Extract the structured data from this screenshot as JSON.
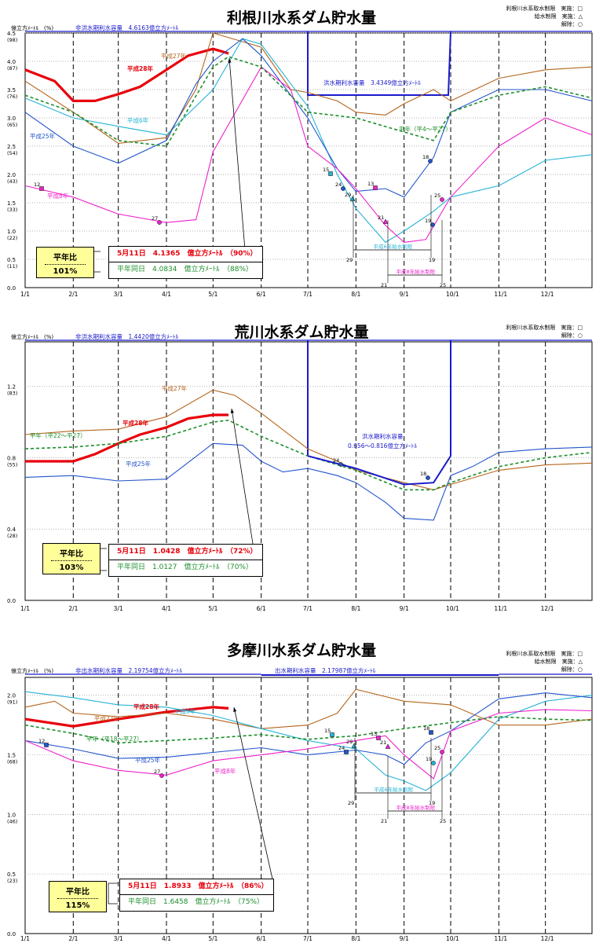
{
  "panels": [
    {
      "title": "利根川水系ダム貯水量",
      "ylabel": "億立方ﾒｰﾄﾙ　(%)",
      "capacity_label": "非洪水期利水容量　4.6163億立方ﾒｰﾄﾙ",
      "flood_label": "洪水期利水容量　3.4349億立方ﾒｰﾄﾙ",
      "notes": [
        "利根川水系取水制限　実施：□",
        "給水制限　実施：△",
        "解除：○"
      ],
      "ratio_label": "平年比",
      "ratio_value": "101%",
      "current_line": "5月11日　4.1365　億立方ﾒｰﾄﾙ　（90%）",
      "normal_line": "平年同日　4.0834　億立方ﾒｰﾄﾙ　（88%）",
      "yticks": [
        "4.5",
        "4.0",
        "3.5",
        "3.0",
        "2.5",
        "2.0",
        "1.5",
        "1.0",
        "0.5",
        "0.0"
      ],
      "ypct": [
        "(98)",
        "(87)",
        "(76)",
        "(65)",
        "(54)",
        "(43)",
        "(33)",
        "(22)",
        "(11)",
        ""
      ],
      "xticks": [
        "1/1",
        "2/1",
        "3/1",
        "4/1",
        "5/1",
        "6/1",
        "7/1",
        "8/1",
        "9/1",
        "10/1",
        "11/1",
        "12/1"
      ],
      "series_labels": [
        {
          "text": "平成28年",
          "color": "#e8000b"
        },
        {
          "text": "平成27年",
          "color": "#b5651d"
        },
        {
          "text": "平成6年",
          "color": "#25b4d6"
        },
        {
          "text": "平成25年",
          "color": "#2255cc"
        },
        {
          "text": "平成8年",
          "color": "#ee22cc"
        },
        {
          "text": "平年（平4～平27）",
          "color": "#1b8f2a"
        }
      ],
      "marker_labels": [
        "12",
        "27",
        "15",
        "24",
        "13",
        "29",
        "21",
        "18",
        "19",
        "25"
      ],
      "bracket_labels": [
        "平成6年給水制限",
        "平成8年給水制限",
        "29",
        "19",
        "21",
        "25"
      ]
    },
    {
      "title": "荒川水系ダム貯水量",
      "ylabel": "億立方ﾒｰﾄﾙ　(%)",
      "capacity_label": "非洪水期利水容量　1.4420億立方ﾒｰﾄﾙ",
      "flood_label": "洪水期利水容量",
      "flood_label2": "0.656～0.816億立方ﾒｰﾄﾙ",
      "notes": [
        "利根川水系取水制限　実施：□",
        "解除：○"
      ],
      "ratio_label": "平年比",
      "ratio_value": "103%",
      "current_line": "5月11日　1.0428　億立方ﾒｰﾄﾙ　（72%）",
      "normal_line": "平年同日　1.0127　億立方ﾒｰﾄﾙ　（70%）",
      "yticks": [
        "1.2",
        "0.8",
        "0.4",
        "0.0"
      ],
      "ypct": [
        "(83)",
        "(55)",
        "(28)",
        ""
      ],
      "xticks": [
        "1/1",
        "2/1",
        "3/1",
        "4/1",
        "5/1",
        "6/1",
        "7/1",
        "8/1",
        "9/1",
        "10/1",
        "11/1",
        "12/1"
      ],
      "series_labels": [
        {
          "text": "平成27年",
          "color": "#b5651d"
        },
        {
          "text": "平成28年",
          "color": "#e8000b"
        },
        {
          "text": "平年（平22～平27）",
          "color": "#1b8f2a"
        },
        {
          "text": "平成25年",
          "color": "#2255cc"
        }
      ],
      "marker_labels": [
        "24",
        "18"
      ]
    },
    {
      "title": "多摩川水系ダム貯水量",
      "ylabel": "億立方ﾒｰﾄﾙ　(%)",
      "capacity_label": "非出水期利水容量　2.19754億立方ﾒｰﾄﾙ",
      "flood_label": "出水期利水容量　2.17987億立方ﾒｰﾄﾙ",
      "notes": [
        "利根川水系取水制限　実施：□",
        "給水制限　実施：△",
        "解除：○"
      ],
      "ratio_label": "平年比",
      "ratio_value": "115%",
      "current_line": "5月11日　1.8933　億立方ﾒｰﾄﾙ　（86%）",
      "normal_line": "平年同日　1.6458　億立方ﾒｰﾄﾙ　（75%）",
      "yticks": [
        "2.0",
        "1.5",
        "1.0",
        "0.5",
        "0.0"
      ],
      "ypct": [
        "(91)",
        "(68)",
        "(46)",
        "(23)",
        ""
      ],
      "xticks": [
        "1/1",
        "2/1",
        "3/1",
        "4/1",
        "5/1",
        "6/1",
        "7/1",
        "8/1",
        "9/1",
        "10/1",
        "11/1",
        "12/1"
      ],
      "series_labels": [
        {
          "text": "平成28年",
          "color": "#e8000b"
        },
        {
          "text": "平成27年",
          "color": "#b5651d"
        },
        {
          "text": "平成6年",
          "color": "#25b4d6"
        },
        {
          "text": "平年（平18～平27）",
          "color": "#1b8f2a"
        },
        {
          "text": "平成25年",
          "color": "#2255cc"
        },
        {
          "text": "平成8年",
          "color": "#ee22cc"
        }
      ],
      "marker_labels": [
        "12",
        "27",
        "15",
        "24",
        "29",
        "13",
        "21",
        "18",
        "19",
        "25"
      ],
      "bracket_labels": [
        "平成6年給水制限",
        "平成8年給水制限",
        "29",
        "19",
        "21",
        "25"
      ]
    }
  ],
  "chart_data": [
    {
      "type": "line",
      "title": "利根川水系ダム貯水量",
      "x_unit": "month/day",
      "ylim": [
        0,
        4.5
      ],
      "xticks": [
        "1/1",
        "2/1",
        "3/1",
        "4/1",
        "5/1",
        "6/1",
        "7/1",
        "8/1",
        "9/1",
        "10/1",
        "11/1",
        "12/1"
      ],
      "series": [
        {
          "name": "平成28年",
          "color": "#e8000b",
          "x": [
            "1/1",
            "1/20",
            "2/1",
            "2/15",
            "3/1",
            "3/15",
            "4/1",
            "4/15",
            "5/1",
            "5/11"
          ],
          "values": [
            3.85,
            3.65,
            3.3,
            3.3,
            3.42,
            3.55,
            3.85,
            4.1,
            4.22,
            4.14
          ]
        },
        {
          "name": "平成27年",
          "color": "#b5651d",
          "x": [
            "1/1",
            "2/1",
            "3/1",
            "4/1",
            "4/20",
            "5/1",
            "6/1",
            "6/20",
            "7/1",
            "7/20",
            "8/1",
            "8/20",
            "9/1",
            "9/20",
            "10/1",
            "11/1",
            "12/1",
            "12/31"
          ],
          "values": [
            3.65,
            3.1,
            2.55,
            2.65,
            3.5,
            4.5,
            4.25,
            3.5,
            3.45,
            3.3,
            3.1,
            3.05,
            3.25,
            3.5,
            3.3,
            3.7,
            3.85,
            3.9
          ]
        },
        {
          "name": "平成6年",
          "color": "#25b4d6",
          "x": [
            "1/1",
            "2/1",
            "3/1",
            "4/1",
            "5/1",
            "5/20",
            "6/1",
            "7/1",
            "7/20",
            "8/1",
            "8/20",
            "9/1",
            "9/20",
            "10/1",
            "11/1",
            "12/1",
            "12/31"
          ],
          "values": [
            3.35,
            3.0,
            2.85,
            2.7,
            3.5,
            4.4,
            4.3,
            3.2,
            2.0,
            1.4,
            0.8,
            1.0,
            1.35,
            1.6,
            1.8,
            2.25,
            2.35
          ]
        },
        {
          "name": "平成25年",
          "color": "#2255cc",
          "x": [
            "1/1",
            "2/1",
            "3/1",
            "4/1",
            "4/20",
            "5/1",
            "5/20",
            "6/1",
            "6/20",
            "7/1",
            "7/20",
            "8/1",
            "8/20",
            "9/1",
            "9/20",
            "10/1",
            "11/1",
            "12/1",
            "12/31"
          ],
          "values": [
            3.1,
            2.5,
            2.2,
            2.6,
            3.6,
            4.0,
            4.4,
            4.1,
            3.4,
            3.0,
            2.1,
            1.7,
            1.75,
            1.6,
            2.3,
            3.1,
            3.5,
            3.5,
            3.3
          ]
        },
        {
          "name": "平成8年",
          "color": "#ee22cc",
          "x": [
            "1/1",
            "2/1",
            "3/1",
            "4/1",
            "4/20",
            "5/1",
            "6/1",
            "6/20",
            "7/1",
            "7/20",
            "8/1",
            "8/20",
            "9/1",
            "9/15",
            "10/1",
            "11/1",
            "12/1",
            "12/31"
          ],
          "values": [
            1.8,
            1.6,
            1.3,
            1.15,
            1.2,
            2.4,
            3.9,
            3.5,
            2.5,
            2.1,
            1.75,
            1.1,
            0.8,
            0.85,
            1.6,
            2.5,
            3.0,
            2.7
          ]
        },
        {
          "name": "平年（平4～平27）",
          "color": "#1b8f2a",
          "dash": true,
          "x": [
            "1/1",
            "2/1",
            "3/1",
            "4/1",
            "5/1",
            "5/11",
            "6/1",
            "7/1",
            "8/1",
            "9/1",
            "9/20",
            "10/1",
            "11/1",
            "12/1",
            "12/31"
          ],
          "values": [
            3.4,
            3.1,
            2.6,
            2.5,
            3.9,
            4.08,
            3.9,
            3.1,
            3.0,
            2.75,
            2.6,
            3.1,
            3.4,
            3.55,
            3.35
          ]
        }
      ]
    },
    {
      "type": "line",
      "title": "荒川水系ダム貯水量",
      "x_unit": "month/day",
      "ylim": [
        0,
        1.45
      ],
      "xticks": [
        "1/1",
        "2/1",
        "3/1",
        "4/1",
        "5/1",
        "6/1",
        "7/1",
        "8/1",
        "9/1",
        "10/1",
        "11/1",
        "12/1"
      ],
      "series": [
        {
          "name": "平成28年",
          "color": "#e8000b",
          "x": [
            "1/1",
            "2/1",
            "2/15",
            "3/1",
            "3/15",
            "4/1",
            "4/15",
            "5/1",
            "5/11"
          ],
          "values": [
            0.78,
            0.78,
            0.82,
            0.88,
            0.93,
            0.97,
            1.02,
            1.04,
            1.04
          ]
        },
        {
          "name": "平成27年",
          "color": "#b5651d",
          "x": [
            "1/1",
            "2/1",
            "3/1",
            "4/1",
            "5/1",
            "5/15",
            "6/1",
            "7/1",
            "7/20",
            "8/1",
            "9/1",
            "9/20",
            "10/1",
            "11/1",
            "12/1",
            "12/31"
          ],
          "values": [
            0.93,
            0.95,
            0.96,
            1.03,
            1.18,
            1.15,
            1.05,
            0.85,
            0.78,
            0.73,
            0.66,
            0.62,
            0.65,
            0.73,
            0.76,
            0.77
          ]
        },
        {
          "name": "平成25年",
          "color": "#2255cc",
          "x": [
            "1/1",
            "2/1",
            "3/1",
            "4/1",
            "5/1",
            "5/20",
            "6/1",
            "6/15",
            "7/1",
            "7/20",
            "8/1",
            "8/20",
            "9/1",
            "9/20",
            "10/1",
            "10/15",
            "11/1",
            "12/1",
            "12/31"
          ],
          "values": [
            0.69,
            0.7,
            0.67,
            0.68,
            0.88,
            0.87,
            0.78,
            0.72,
            0.74,
            0.7,
            0.66,
            0.55,
            0.46,
            0.45,
            0.7,
            0.75,
            0.83,
            0.85,
            0.86
          ]
        },
        {
          "name": "平年（平22～平27）",
          "color": "#1b8f2a",
          "dash": true,
          "x": [
            "1/1",
            "2/1",
            "3/1",
            "4/1",
            "5/1",
            "5/11",
            "6/1",
            "7/1",
            "8/1",
            "9/1",
            "9/20",
            "10/1",
            "11/1",
            "12/1",
            "12/31"
          ],
          "values": [
            0.85,
            0.86,
            0.88,
            0.92,
            1.0,
            1.01,
            0.92,
            0.81,
            0.73,
            0.62,
            0.62,
            0.66,
            0.75,
            0.8,
            0.83
          ]
        },
        {
          "name": "洪水期利水容量",
          "color": "#1a1acc",
          "x": [
            "7/1",
            "8/1",
            "9/1",
            "9/20",
            "10/1"
          ],
          "values": [
            0.81,
            0.74,
            0.65,
            0.66,
            0.81
          ]
        }
      ]
    },
    {
      "type": "line",
      "title": "多摩川水系ダム貯水量",
      "x_unit": "month/day",
      "ylim": [
        0,
        2.15
      ],
      "xticks": [
        "1/1",
        "2/1",
        "3/1",
        "4/1",
        "5/1",
        "6/1",
        "7/1",
        "8/1",
        "9/1",
        "10/1",
        "11/1",
        "12/1"
      ],
      "series": [
        {
          "name": "平成28年",
          "color": "#e8000b",
          "x": [
            "1/1",
            "2/1",
            "3/1",
            "4/1",
            "5/1",
            "5/11"
          ],
          "values": [
            1.8,
            1.74,
            1.8,
            1.86,
            1.9,
            1.89
          ]
        },
        {
          "name": "平成27年",
          "color": "#b5651d",
          "x": [
            "1/1",
            "1/20",
            "2/1",
            "3/1",
            "4/1",
            "5/1",
            "6/1",
            "7/1",
            "7/20",
            "8/1",
            "9/1",
            "10/1",
            "11/1",
            "12/1",
            "12/31"
          ],
          "values": [
            1.9,
            1.95,
            1.85,
            1.82,
            1.85,
            1.8,
            1.72,
            1.75,
            1.85,
            2.05,
            1.95,
            1.92,
            1.75,
            1.75,
            1.8
          ]
        },
        {
          "name": "平成6年",
          "color": "#25b4d6",
          "x": [
            "1/1",
            "2/1",
            "3/1",
            "4/1",
            "5/1",
            "6/1",
            "7/1",
            "8/1",
            "8/20",
            "9/1",
            "9/15",
            "10/1",
            "11/1",
            "12/1",
            "12/31"
          ],
          "values": [
            2.03,
            1.98,
            1.92,
            1.9,
            1.83,
            1.72,
            1.62,
            1.55,
            1.33,
            1.28,
            1.2,
            1.35,
            1.8,
            1.95,
            2.0
          ]
        },
        {
          "name": "平成25年",
          "color": "#2255cc",
          "x": [
            "1/1",
            "2/1",
            "3/1",
            "4/1",
            "5/1",
            "6/1",
            "7/1",
            "8/1",
            "8/20",
            "9/1",
            "9/15",
            "10/1",
            "11/1",
            "12/1",
            "12/31"
          ],
          "values": [
            1.62,
            1.55,
            1.47,
            1.48,
            1.52,
            1.56,
            1.5,
            1.54,
            1.5,
            1.42,
            1.6,
            1.7,
            1.97,
            2.02,
            1.98
          ]
        },
        {
          "name": "平成8年",
          "color": "#ee22cc",
          "x": [
            "1/1",
            "2/1",
            "3/1",
            "4/1",
            "5/1",
            "6/1",
            "7/1",
            "8/1",
            "8/20",
            "9/1",
            "9/20",
            "10/1",
            "11/1",
            "12/1",
            "12/31"
          ],
          "values": [
            1.62,
            1.45,
            1.37,
            1.33,
            1.45,
            1.5,
            1.55,
            1.62,
            1.66,
            1.5,
            1.3,
            1.7,
            1.85,
            1.88,
            1.87
          ]
        },
        {
          "name": "平年（平18～平27）",
          "color": "#1b8f2a",
          "dash": true,
          "x": [
            "1/1",
            "2/1",
            "3/1",
            "4/1",
            "5/1",
            "5/11",
            "6/1",
            "7/1",
            "8/1",
            "9/1",
            "10/1",
            "11/1",
            "12/1",
            "12/31"
          ],
          "values": [
            1.75,
            1.68,
            1.6,
            1.62,
            1.64,
            1.65,
            1.67,
            1.63,
            1.66,
            1.72,
            1.77,
            1.82,
            1.8,
            1.79
          ]
        }
      ]
    }
  ]
}
